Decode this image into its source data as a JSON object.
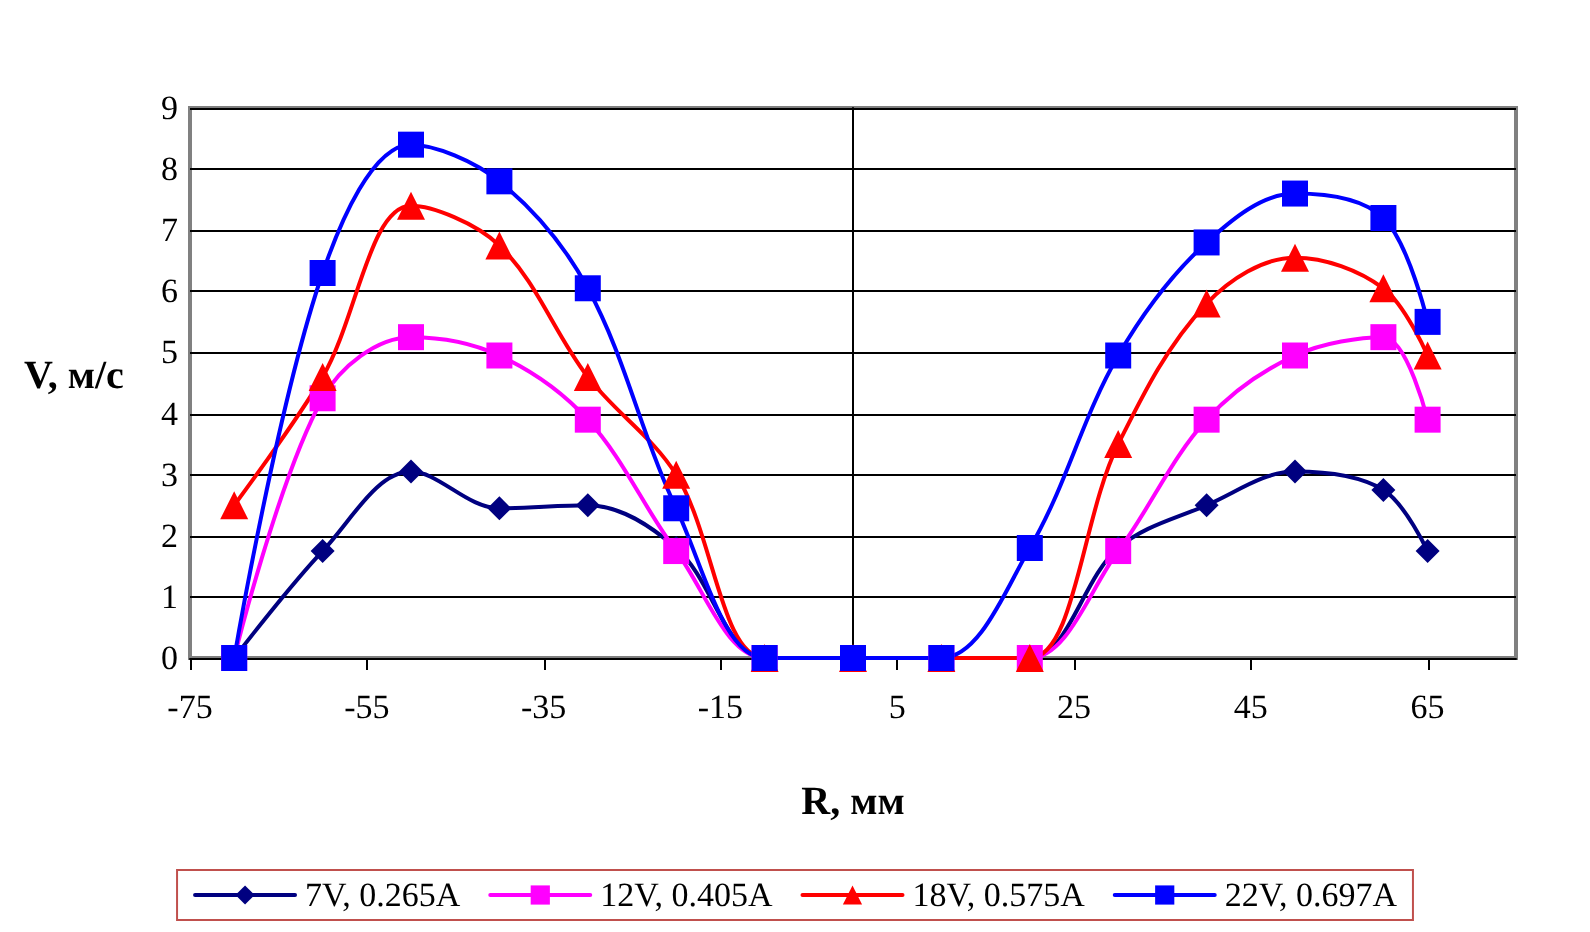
{
  "chart_data": {
    "type": "line",
    "xlabel": "R, мм",
    "ylabel": "V, м/с",
    "x": [
      -70,
      -60,
      -50,
      -40,
      -30,
      -20,
      -10,
      0,
      10,
      20,
      30,
      40,
      50,
      60,
      65
    ],
    "xlim": [
      -75,
      75
    ],
    "xticks": [
      -75,
      -55,
      -35,
      -15,
      5,
      25,
      45,
      65
    ],
    "ylim": [
      0,
      9
    ],
    "yticks": [
      0,
      1,
      2,
      3,
      4,
      5,
      6,
      7,
      8,
      9
    ],
    "grid": "y",
    "legend": "bottom",
    "line_style": "solid",
    "series": [
      {
        "name": "7V, 0.265A",
        "color": "#000080",
        "marker": "diamond",
        "values": [
          0,
          1.75,
          3.05,
          2.45,
          2.5,
          1.8,
          0,
          0,
          0,
          0,
          1.8,
          2.5,
          3.05,
          2.75,
          1.75
        ]
      },
      {
        "name": "12V, 0.405A",
        "color": "#ff00ff",
        "marker": "square",
        "values": [
          0,
          4.25,
          5.25,
          4.95,
          3.9,
          1.75,
          0,
          0,
          0,
          0,
          1.75,
          3.9,
          4.95,
          5.25,
          3.9
        ]
      },
      {
        "name": "18V, 0.575A",
        "color": "#ff0000",
        "marker": "triangle",
        "values": [
          2.5,
          4.6,
          7.4,
          6.75,
          4.6,
          3.0,
          0,
          0,
          0,
          0,
          3.5,
          5.8,
          6.55,
          6.05,
          4.95
        ]
      },
      {
        "name": "22V, 0.697A",
        "color": "#0000ff",
        "marker": "square",
        "values": [
          0,
          6.3,
          8.4,
          7.8,
          6.05,
          2.45,
          0,
          0,
          0,
          1.8,
          4.95,
          6.8,
          7.6,
          7.2,
          5.5
        ]
      }
    ]
  }
}
